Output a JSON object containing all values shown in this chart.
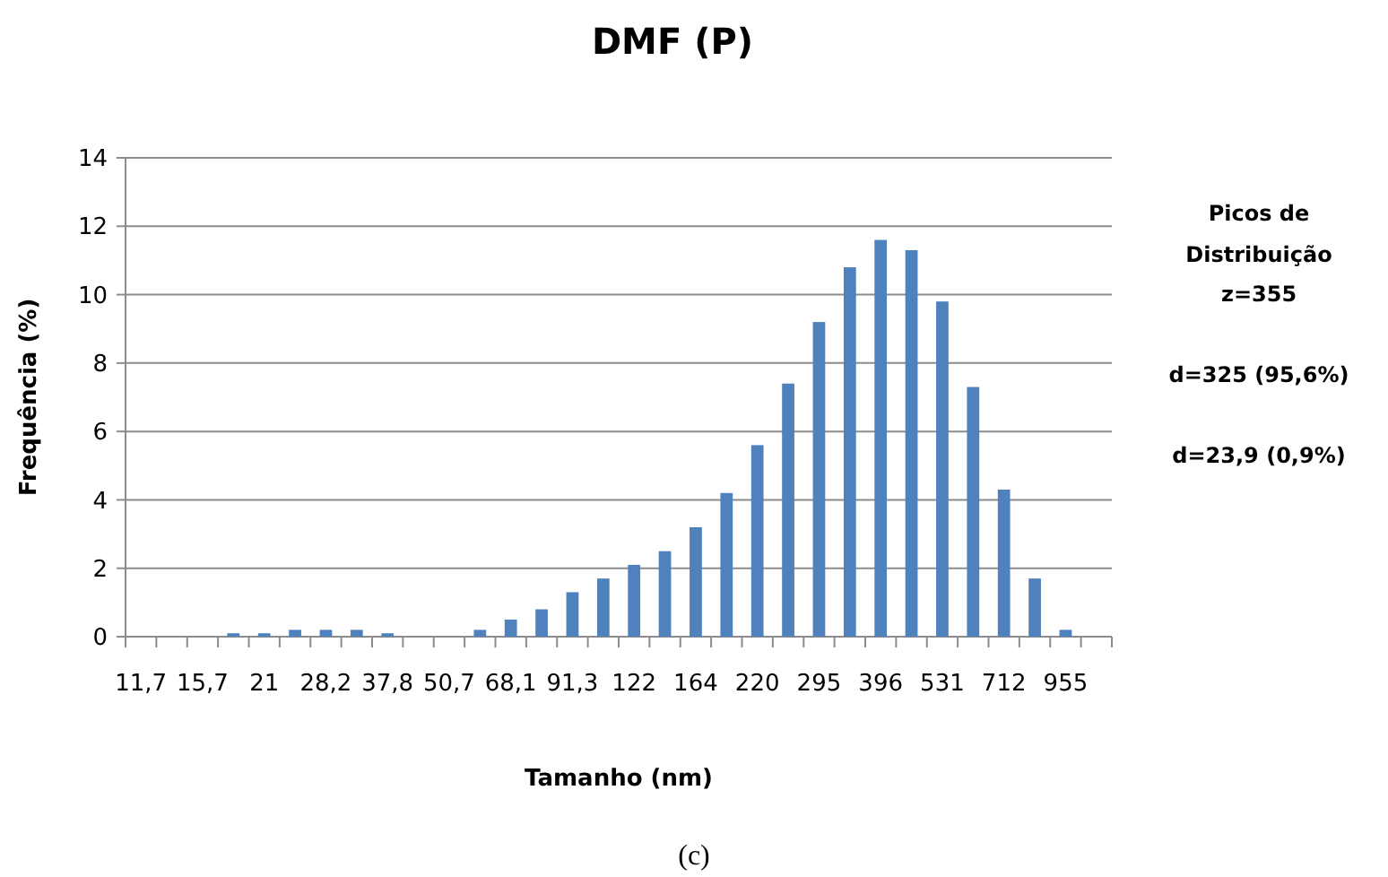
{
  "chart_data": {
    "type": "bar",
    "title": "DMF (P)",
    "xlabel": "Tamanho (nm)",
    "ylabel": "Frequência (%)",
    "categories": [
      "11,7",
      null,
      "15,7",
      null,
      "21",
      null,
      "28,2",
      null,
      "37,8",
      null,
      "50,7",
      null,
      "68,1",
      null,
      "91,3",
      null,
      "122",
      null,
      "164",
      null,
      "220",
      null,
      "295",
      null,
      "396",
      null,
      "531",
      null,
      "712",
      null,
      "955",
      null
    ],
    "values": [
      0,
      0,
      0,
      0.1,
      0.1,
      0.2,
      0.2,
      0.2,
      0.1,
      0,
      0,
      0.2,
      0.5,
      0.8,
      1.3,
      1.7,
      2.1,
      2.5,
      3.2,
      4.2,
      5.6,
      7.4,
      9.2,
      10.8,
      11.6,
      11.3,
      9.8,
      7.3,
      4.3,
      1.7,
      0.2,
      0
    ],
    "color": "#4f81bd",
    "ylim": [
      0,
      14
    ],
    "yticks": [
      0,
      2,
      4,
      6,
      8,
      10,
      12,
      14
    ],
    "grid": "y",
    "annotations": [
      "Picos de Distribuição",
      "z=355",
      "d=325 (95,6%)",
      "d=23,9 (0,9%)",
      "(c)"
    ]
  }
}
